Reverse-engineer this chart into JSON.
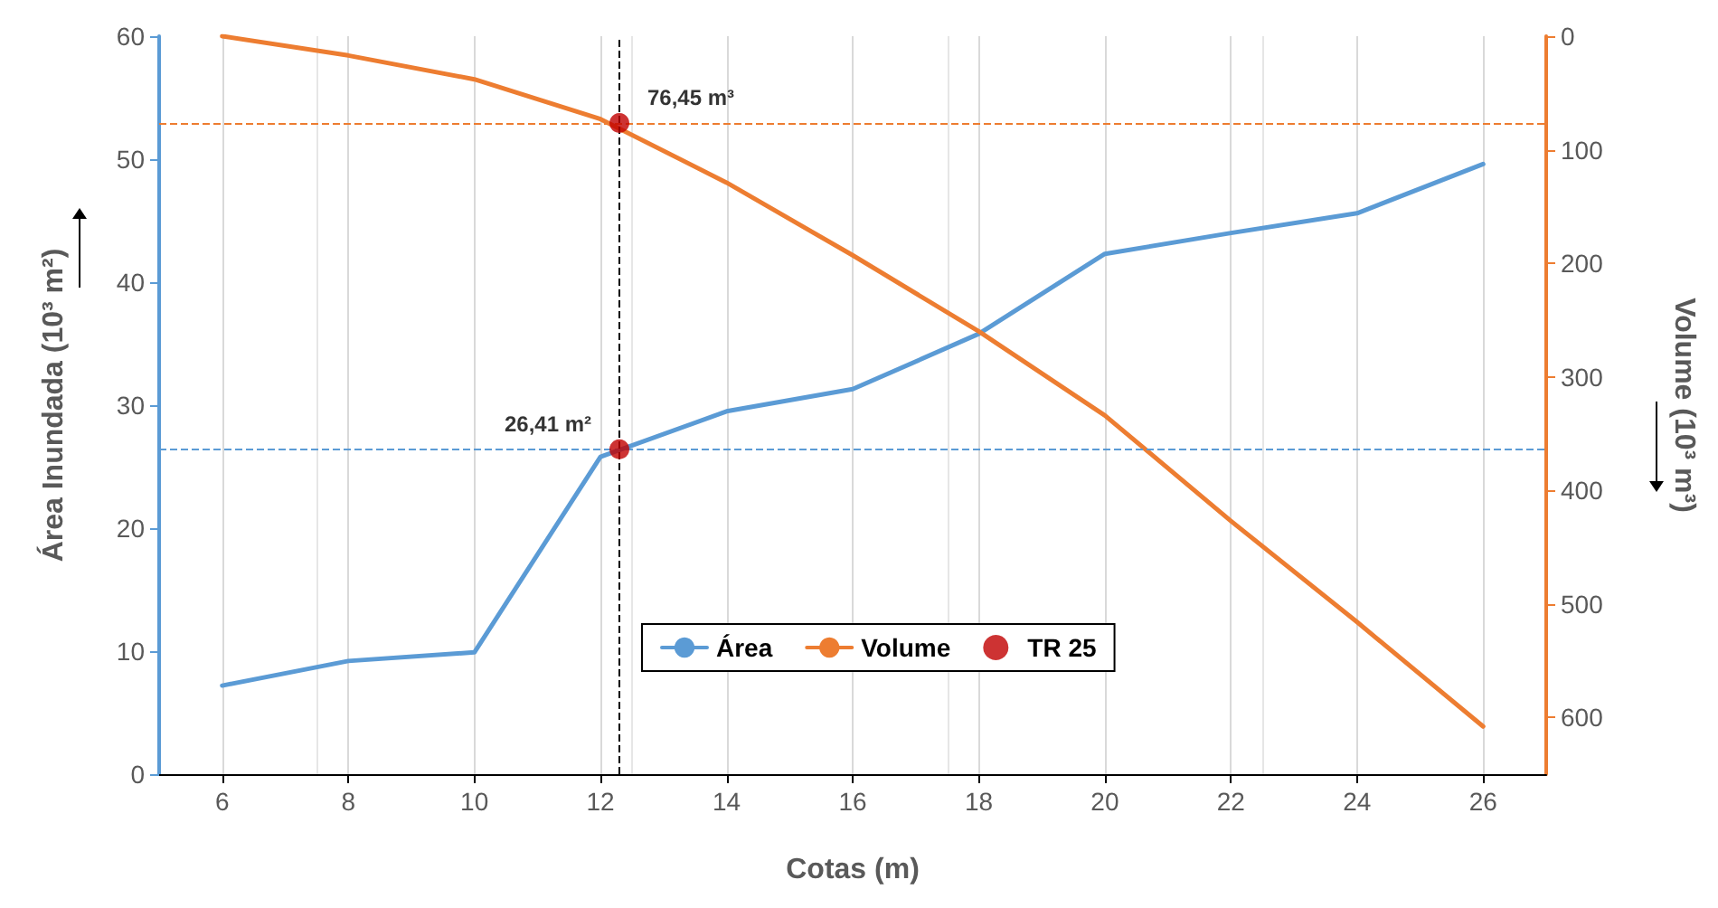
{
  "chart_data": {
    "type": "line",
    "xlabel": "Cotas (m)",
    "ylabel": "Área Inundada (10³ m²)",
    "y2label": "Volume (10³ m³)",
    "xlim": [
      5,
      27
    ],
    "xticks": [
      6,
      8,
      10,
      12,
      14,
      16,
      18,
      20,
      22,
      24,
      26
    ],
    "ylim": [
      0,
      60
    ],
    "yticks": [
      0,
      10,
      20,
      30,
      40,
      50,
      60
    ],
    "y2lim": [
      650,
      0
    ],
    "y2ticks": [
      0,
      100,
      200,
      300,
      400,
      500,
      600
    ],
    "grid": "x",
    "legend": "bottom",
    "line_style": "solid",
    "series": [
      {
        "name": "Área",
        "color": "#5b9bd5",
        "x": [
          6,
          8,
          10,
          12,
          14,
          16,
          18,
          20,
          22,
          24,
          26
        ],
        "values": [
          7.2,
          9.2,
          9.9,
          25.8,
          29.5,
          31.3,
          35.8,
          42.3,
          44,
          45.6,
          49.6
        ]
      },
      {
        "name": "Volume",
        "color": "#ed7d31",
        "axis": "y2",
        "x": [
          6,
          8,
          10,
          12,
          14,
          16,
          18,
          20,
          22,
          24,
          26
        ],
        "values": [
          0,
          17,
          38,
          73,
          129,
          193,
          260,
          334,
          427,
          516,
          608
        ]
      },
      {
        "name": "TR 25",
        "type": "scatter",
        "color": "#c00000",
        "marker": "circle",
        "x": [
          12.3
        ],
        "values": [
          26.41
        ],
        "value_labels": [
          "26,41 m²"
        ]
      },
      {
        "type": "scatter",
        "axis": "y2",
        "color": "#c00000",
        "marker": "circle",
        "x": [
          12.3
        ],
        "values": [
          76.45
        ],
        "value_labels": [
          "76,45 m³"
        ]
      }
    ],
    "ref_lines": [
      {
        "axis": "y",
        "value": 26.41,
        "color": "#5b9bd5",
        "line_style": "dashed"
      },
      {
        "axis": "y2",
        "value": 76.45,
        "color": "#ed7d31",
        "line_style": "dashed"
      },
      {
        "axis": "x",
        "value": 12.3,
        "color": "#000000",
        "line_style": "dashed"
      }
    ]
  }
}
